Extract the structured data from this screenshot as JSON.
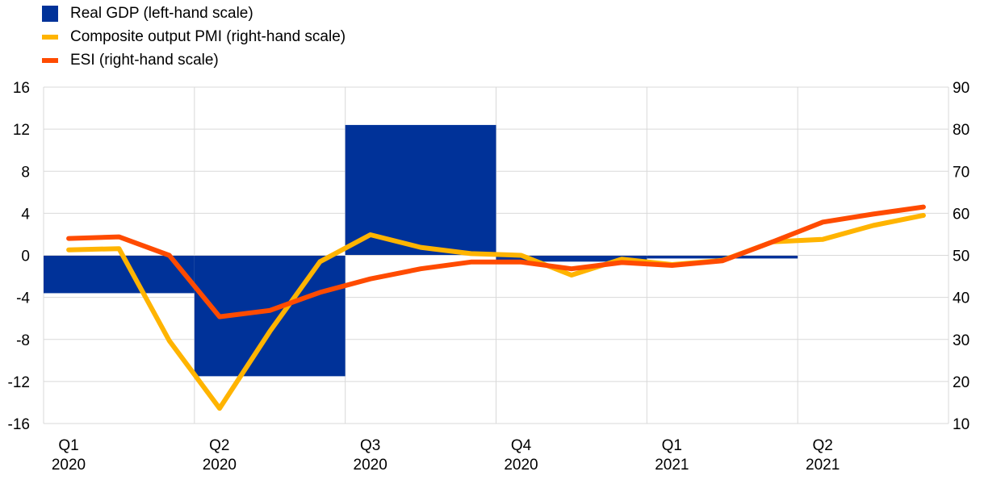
{
  "colors": {
    "gdp": "#003299",
    "pmi": "#ffb400",
    "esi": "#ff4b00",
    "grid": "#d9d9d9"
  },
  "legend": [
    {
      "label": "Real GDP (left-hand scale)",
      "color": "#003299",
      "symbol": "box"
    },
    {
      "label": "Composite output PMI (right-hand scale)",
      "color": "#ffb400",
      "symbol": "line"
    },
    {
      "label": "ESI (right-hand scale)",
      "color": "#ff4b00",
      "symbol": "line"
    }
  ],
  "chart_data": {
    "type": "bar+line",
    "legend_position": "top-left",
    "grid": true,
    "x_ticks": [
      {
        "quarter": "Q1",
        "year": "2020"
      },
      {
        "quarter": "Q2",
        "year": "2020"
      },
      {
        "quarter": "Q3",
        "year": "2020"
      },
      {
        "quarter": "Q4",
        "year": "2020"
      },
      {
        "quarter": "Q1",
        "year": "2021"
      },
      {
        "quarter": "Q2",
        "year": "2021"
      }
    ],
    "y_left": {
      "min": -16,
      "max": 16,
      "ticks": [
        16,
        12,
        8,
        4,
        0,
        -4,
        -8,
        -12,
        -16
      ]
    },
    "y_right": {
      "min": 10,
      "max": 90,
      "ticks": [
        90,
        80,
        70,
        60,
        50,
        40,
        30,
        20,
        10
      ]
    },
    "bars": {
      "name": "Real GDP (left-hand scale)",
      "axis": "left",
      "categories": [
        "Q1 2020",
        "Q2 2020",
        "Q3 2020",
        "Q4 2020",
        "Q1 2021"
      ],
      "values": [
        -3.6,
        -11.5,
        12.4,
        -0.6,
        -0.3
      ]
    },
    "months": [
      "Jan 2020",
      "Feb 2020",
      "Mar 2020",
      "Apr 2020",
      "May 2020",
      "Jun 2020",
      "Jul 2020",
      "Aug 2020",
      "Sep 2020",
      "Oct 2020",
      "Nov 2020",
      "Dec 2020",
      "Jan 2021",
      "Feb 2021",
      "Mar 2021",
      "Apr 2021",
      "May 2021",
      "Jun 2021"
    ],
    "series": [
      {
        "name": "Composite output PMI (right-hand scale)",
        "axis": "right",
        "values": [
          51.3,
          51.6,
          29.7,
          13.6,
          31.9,
          48.5,
          54.9,
          51.9,
          50.4,
          50.0,
          45.3,
          49.1,
          47.8,
          48.8,
          53.2,
          53.8,
          57.1,
          59.5
        ]
      },
      {
        "name": "ESI (right-hand scale)",
        "axis": "right",
        "values": [
          54.0,
          54.4,
          50.0,
          35.4,
          36.9,
          41.2,
          44.4,
          46.8,
          48.4,
          48.4,
          46.8,
          48.3,
          47.6,
          48.7,
          53.2,
          57.9,
          59.8,
          61.5
        ]
      }
    ]
  }
}
